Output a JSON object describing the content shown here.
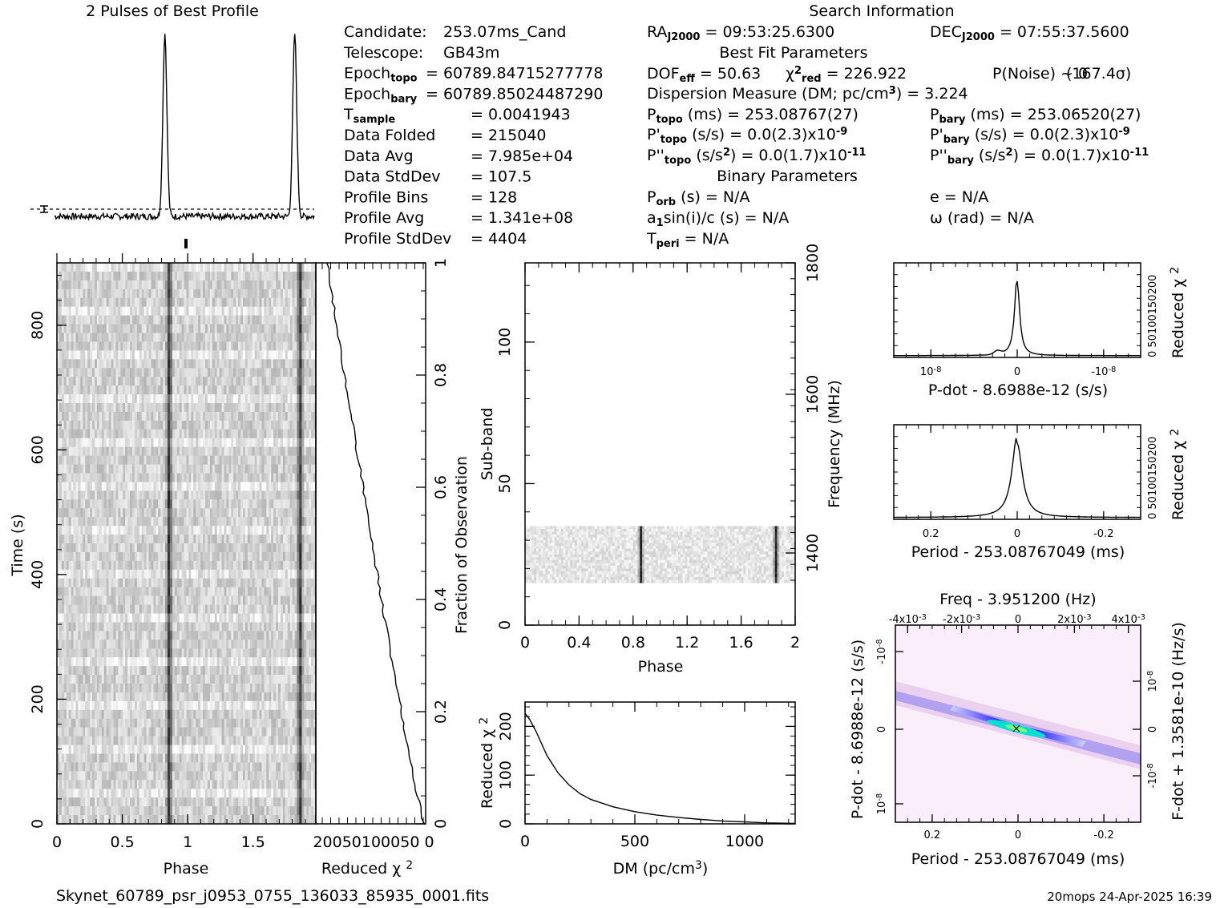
{
  "title_profile": "2 Pulses of Best Profile",
  "title_search": "Search Information",
  "candidate_info": [
    {
      "label": "Candidate:",
      "value": "253.07ms_Cand"
    },
    {
      "label": "Telescope:",
      "value": "GB43m"
    },
    {
      "label": "Epoch",
      "sub": "topo",
      "value": "= 60789.84715277778"
    },
    {
      "label": "Epoch",
      "sub": "bary",
      "value": "= 60789.85024487290"
    },
    {
      "label": "T",
      "sub": "sample",
      "value": "=  0.0041943"
    },
    {
      "label": "Data Folded",
      "value": "=  215040"
    },
    {
      "label": "Data Avg",
      "value": "=  7.985e+04"
    },
    {
      "label": "Data StdDev",
      "value": "=  107.5"
    },
    {
      "label": "Profile Bins",
      "value": "=  128"
    },
    {
      "label": "Profile Avg",
      "value": "=  1.341e+08"
    },
    {
      "label": "Profile StdDev",
      "value": "=  4404"
    }
  ],
  "search_info": {
    "ra": {
      "label": "RA",
      "sub": "J2000",
      "value": "= 09:53:25.6300"
    },
    "dec": {
      "label": "DEC",
      "sub": "J2000",
      "value": "= 07:55:37.5600"
    },
    "best_fit_title": "Best Fit Parameters",
    "dof": {
      "label": "DOF",
      "sub": "eff",
      "value": "= 50.63"
    },
    "chi2": {
      "label": "χ",
      "sup": "2",
      "sub": "red",
      "value": "= 226.922"
    },
    "pnoise": "P(Noise) ~ 0",
    "sigma": "(167.4σ)",
    "dm": {
      "label": "Dispersion Measure (DM; pc/cm",
      "sup": "3",
      "value": ") = 3.224"
    },
    "ptopo": {
      "label": "P",
      "sub": "topo",
      "unit": "(ms)",
      "value": "=  253.08767(27)"
    },
    "pbary": {
      "label": "P",
      "sub": "bary",
      "unit": "(ms)",
      "value": "=  253.06520(27)"
    },
    "pdtopo": {
      "label": "P'",
      "sub": "topo",
      "unit": "(s/s)",
      "value": "= 0.0(2.3)x10",
      "exp": "-9"
    },
    "pdbary": {
      "label": "P'",
      "sub": "bary",
      "unit": "(s/s)",
      "value": "= 0.0(2.3)x10",
      "exp": "-9"
    },
    "pddtopo": {
      "label": "P''",
      "sub": "topo",
      "unit": "(s/s",
      "unitsup": "2",
      "value": ") = 0.0(1.7)x10",
      "exp": "-11"
    },
    "pddbary": {
      "label": "P''",
      "sub": "bary",
      "unit": "(s/s",
      "unitsup": "2",
      "value": ") = 0.0(1.7)x10",
      "exp": "-11"
    },
    "binary_title": "Binary Parameters",
    "porb": {
      "label": "P",
      "sub": "orb",
      "value": "(s) = N/A"
    },
    "ecc": "e = N/A",
    "a1": {
      "label": "a",
      "sub": "1",
      "value": "sin(i)/c (s) = N/A"
    },
    "omega": "ω (rad) = N/A",
    "tperi": {
      "label": "T",
      "sub": "peri",
      "value": "= N/A"
    }
  },
  "footer_file": "Skynet_60789_psr_j0953_0755_136033_85935_0001.fits",
  "footer_stamp": "20mops 24-Apr-2025 16:39",
  "chart_data": [
    {
      "type": "line",
      "name": "profile",
      "title": "2 Pulses of Best Profile",
      "x_range": [
        0,
        2
      ],
      "peaks_phase": [
        0.85,
        1.85
      ],
      "peak_fraction": 1.0,
      "baseline_fraction": 0.0
    },
    {
      "type": "heatmap",
      "name": "time-phase",
      "xlabel": "Phase",
      "ylabel": "Time (s)",
      "x_ticks": [
        "0",
        "0.5",
        "1",
        "1.5"
      ],
      "y_ticks": [
        "0",
        "200",
        "400",
        "600",
        "800"
      ],
      "xlim": [
        0,
        2
      ],
      "ylim": [
        0,
        900
      ],
      "pulse_phases": [
        0.85,
        1.85
      ]
    },
    {
      "type": "line",
      "name": "reduced-chi2-vs-fraction",
      "xlabel": "Reduced χ",
      "xlabel_sup": "2",
      "x_ticks_text": "20050100050 0",
      "right_label": "Fraction of Observation",
      "right_ticks": [
        "0",
        "0.2",
        "0.4",
        "0.6",
        "0.8",
        "1"
      ]
    },
    {
      "type": "heatmap",
      "name": "subband-phase",
      "xlabel": "Phase",
      "ylabel": "Sub-band",
      "right_label": "Frequency (MHz)",
      "x_ticks": [
        "0",
        "0.4",
        "0.8",
        "1.2",
        "1.6",
        "2"
      ],
      "y_ticks": [
        "0",
        "50",
        "100"
      ],
      "right_ticks": [
        "1400",
        "1600",
        "1800"
      ],
      "xlim": [
        0,
        2
      ],
      "ylim": [
        0,
        128
      ],
      "band_subbands": [
        15,
        35
      ],
      "pulse_phases": [
        0.85,
        1.85
      ]
    },
    {
      "type": "line",
      "name": "dm-chi2",
      "xlabel": "DM (pc/cm",
      "xlabel_sup": "3",
      "xlabel_end": ")",
      "ylabel": "Reduced χ",
      "ylabel_sup": "2",
      "x_ticks": [
        "0",
        "500",
        "1000"
      ],
      "y_ticks": [
        "0",
        "100",
        "200"
      ],
      "xlim": [
        0,
        1230
      ],
      "ylim": [
        0,
        250
      ],
      "x": [
        0,
        20,
        50,
        100,
        150,
        200,
        250,
        300,
        400,
        500,
        600,
        700,
        800,
        900,
        1000,
        1100,
        1230
      ],
      "y": [
        227,
        215,
        190,
        140,
        105,
        80,
        62,
        50,
        35,
        25,
        18,
        13,
        9,
        6,
        4,
        2,
        1
      ]
    },
    {
      "type": "line",
      "name": "pdot-chi2",
      "xlabel": "P-dot - 8.6988e-12 (s/s)",
      "right_label": "Reduced χ",
      "right_label_sup": "2",
      "x_ticks": [
        "10",
        "0",
        "-10"
      ],
      "x_tick_exp": "-8",
      "y_ticks_text": "0 50100150200",
      "peak_x_fraction": 0.5
    },
    {
      "type": "line",
      "name": "period-chi2",
      "xlabel": "Period - 253.08767049 (ms)",
      "right_label": "Reduced χ",
      "right_label_sup": "2",
      "x_ticks": [
        "0.2",
        "0",
        "-0.2"
      ],
      "y_ticks_text": "0 50100150200",
      "peak_x_fraction": 0.5
    },
    {
      "type": "heatmap",
      "name": "period-pdot",
      "title": "Freq - 3.951200 (Hz)",
      "xlabel": "Period - 253.08767049 (ms)",
      "ylabel": "P-dot - 8.6988e-12 (s/s)",
      "right_label": "F-dot + 1.3581e-10 (Hz/s)",
      "x_ticks": [
        "0.2",
        "0",
        "-0.2"
      ],
      "top_ticks": [
        "-4x10",
        "-2x10",
        "0",
        "2x10",
        "4x10"
      ],
      "top_tick_exp": "-3",
      "left_ticks": [
        "10",
        "0",
        "-10"
      ],
      "left_tick_exp": "-8",
      "right_ticks": [
        "10",
        "0",
        "-10"
      ],
      "right_tick_exp": "-8"
    }
  ]
}
